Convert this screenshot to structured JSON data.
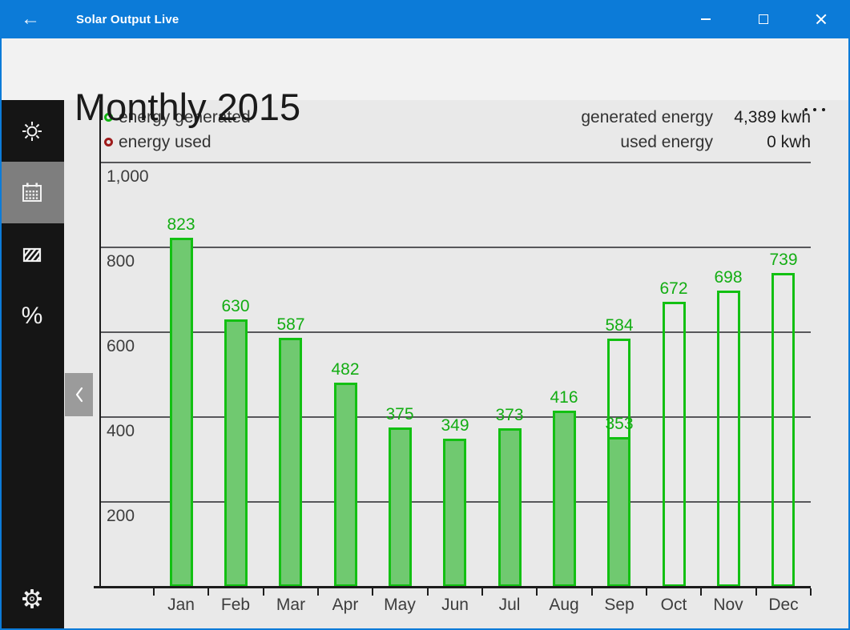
{
  "app": {
    "accent_color": "#0c7bd8"
  },
  "titlebar": {
    "title": "Solar Output Live",
    "back_icon": "left-arrow",
    "controls": {
      "minimize": "minimize",
      "maximize": "maximize",
      "close": "close"
    }
  },
  "header": {
    "title": "Monthly 2015",
    "more_icon": "ellipsis"
  },
  "sidebar": {
    "items": [
      {
        "id": "brightness",
        "icon": "sun-icon",
        "selected": false
      },
      {
        "id": "monthly",
        "icon": "calendar-icon",
        "selected": true
      },
      {
        "id": "tariff",
        "icon": "diagonal-stripes-icon",
        "selected": false
      },
      {
        "id": "percentage",
        "icon": "percent-icon",
        "selected": false
      }
    ],
    "percent_glyph": "%",
    "settings_icon": "gear-icon"
  },
  "flyout": {
    "icon": "chevron-left-icon"
  },
  "legend": {
    "items": [
      {
        "label": "energy generated",
        "color": "#12b412"
      },
      {
        "label": "energy used",
        "color": "#9e1b1b"
      }
    ]
  },
  "summary": {
    "rows": [
      {
        "label": "generated energy",
        "value": "4,389 kwh"
      },
      {
        "label": "used energy",
        "value": "0 kwh"
      }
    ]
  },
  "chart_data": {
    "type": "bar",
    "title": "Monthly 2015",
    "categories": [
      "Jan",
      "Feb",
      "Mar",
      "Apr",
      "May",
      "Jun",
      "Jul",
      "Aug",
      "Sep",
      "Oct",
      "Nov",
      "Dec"
    ],
    "series": [
      {
        "name": "energy generated",
        "style": "filled",
        "values": [
          823,
          630,
          587,
          482,
          375,
          349,
          373,
          416,
          353,
          null,
          null,
          null
        ]
      },
      {
        "name": "energy generated (outline)",
        "style": "outline",
        "values": [
          null,
          null,
          null,
          null,
          null,
          null,
          null,
          null,
          584,
          672,
          698,
          739
        ]
      }
    ],
    "y_ticks": [
      {
        "value": 1000,
        "label": "1,000"
      },
      {
        "value": 800,
        "label": "800"
      },
      {
        "value": 600,
        "label": "600"
      },
      {
        "value": 400,
        "label": "400"
      },
      {
        "value": 200,
        "label": "200"
      }
    ],
    "ylim": [
      0,
      1150
    ],
    "grid": "horizontal",
    "legend_position": "top-left",
    "bar_fill_color": "#70c970",
    "bar_border_color": "#12c012",
    "value_label_color": "#13ad13",
    "total_generated": "4,389 kwh",
    "total_used": "0 kwh"
  }
}
